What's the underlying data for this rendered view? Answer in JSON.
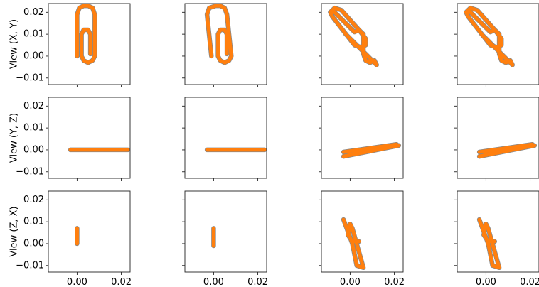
{
  "chart_data": {
    "type": "line",
    "title": "",
    "layout": {
      "rows": 3,
      "cols": 4
    },
    "row_labels": [
      "View (X, Y)",
      "View (Y, Z)",
      "View (Z, X)"
    ],
    "xlim": [
      -0.013,
      0.024
    ],
    "ylim": [
      -0.013,
      0.024
    ],
    "xticks": [
      0.0,
      0.02
    ],
    "xtick_labels": [
      "0.00",
      "0.02"
    ],
    "yticks": [
      -0.01,
      0.0,
      0.01,
      0.02
    ],
    "ytick_labels": [
      "−0.01",
      "0.00",
      "0.01",
      "0.02"
    ],
    "grid": false,
    "colors": {
      "primary": "#ff7f0e",
      "underlay": "#888888",
      "frame": "#222222"
    },
    "panels": [
      {
        "row": 0,
        "col": 0,
        "points": [
          [
            0.0,
            0.0
          ],
          [
            0.0,
            0.019
          ],
          [
            0.001,
            0.022
          ],
          [
            0.003,
            0.023
          ],
          [
            0.005,
            0.023
          ],
          [
            0.007,
            0.022
          ],
          [
            0.008,
            0.019
          ],
          [
            0.008,
            0.0
          ],
          [
            0.007,
            -0.002
          ],
          [
            0.005,
            -0.003
          ],
          [
            0.003,
            -0.002
          ],
          [
            0.002,
            0.0
          ],
          [
            0.002,
            0.01
          ],
          [
            0.003,
            0.012
          ],
          [
            0.005,
            0.012
          ],
          [
            0.006,
            0.01
          ],
          [
            0.006,
            0.001
          ]
        ]
      },
      {
        "row": 0,
        "col": 1,
        "points": [
          [
            -0.001,
            0.0
          ],
          [
            -0.003,
            0.019
          ],
          [
            -0.002,
            0.022
          ],
          [
            0.001,
            0.023
          ],
          [
            0.003,
            0.023
          ],
          [
            0.005,
            0.022
          ],
          [
            0.006,
            0.019
          ],
          [
            0.008,
            0.0
          ],
          [
            0.007,
            -0.002
          ],
          [
            0.005,
            -0.003
          ],
          [
            0.003,
            -0.002
          ],
          [
            0.002,
            0.0
          ],
          [
            0.002,
            0.01
          ],
          [
            0.003,
            0.012
          ],
          [
            0.005,
            0.012
          ],
          [
            0.006,
            0.01
          ],
          [
            0.006,
            0.001
          ]
        ]
      },
      {
        "row": 0,
        "col": 2,
        "points": [
          [
            -0.008,
            0.021
          ],
          [
            -0.007,
            0.022
          ],
          [
            -0.004,
            0.021
          ],
          [
            0.004,
            0.012
          ],
          [
            0.007,
            0.008
          ],
          [
            0.007,
            0.005
          ],
          [
            0.005,
            0.004
          ],
          [
            0.002,
            0.005
          ],
          [
            -0.008,
            0.018
          ],
          [
            -0.009,
            0.02
          ],
          [
            -0.008,
            0.021
          ],
          [
            0.002,
            0.011
          ],
          [
            0.004,
            0.012
          ],
          [
            0.006,
            0.01
          ],
          [
            0.006,
            0.001
          ],
          [
            0.007,
            -0.002
          ],
          [
            0.009,
            -0.003
          ],
          [
            0.011,
            -0.002
          ],
          [
            0.012,
            -0.004
          ],
          [
            -0.002,
            0.01
          ]
        ]
      },
      {
        "row": 0,
        "col": 3,
        "points": [
          [
            -0.008,
            0.021
          ],
          [
            -0.007,
            0.022
          ],
          [
            -0.004,
            0.021
          ],
          [
            0.004,
            0.012
          ],
          [
            0.007,
            0.008
          ],
          [
            0.007,
            0.005
          ],
          [
            0.005,
            0.004
          ],
          [
            0.002,
            0.005
          ],
          [
            -0.008,
            0.018
          ],
          [
            -0.009,
            0.02
          ],
          [
            -0.008,
            0.021
          ],
          [
            0.002,
            0.011
          ],
          [
            0.004,
            0.012
          ],
          [
            0.006,
            0.01
          ],
          [
            0.006,
            0.001
          ],
          [
            0.007,
            -0.002
          ],
          [
            0.009,
            -0.003
          ],
          [
            0.011,
            -0.002
          ],
          [
            0.012,
            -0.004
          ],
          [
            -0.002,
            0.01
          ]
        ]
      },
      {
        "row": 1,
        "col": 0,
        "points": [
          [
            -0.003,
            0.0
          ],
          [
            0.023,
            0.0
          ]
        ]
      },
      {
        "row": 1,
        "col": 1,
        "points": [
          [
            -0.003,
            0.0
          ],
          [
            0.023,
            0.0
          ]
        ]
      },
      {
        "row": 1,
        "col": 2,
        "points": [
          [
            -0.003,
            -0.001
          ],
          [
            0.021,
            0.0025
          ],
          [
            -0.003,
            -0.003
          ],
          [
            0.022,
            0.002
          ]
        ]
      },
      {
        "row": 1,
        "col": 3,
        "points": [
          [
            -0.003,
            -0.001
          ],
          [
            0.021,
            0.0025
          ],
          [
            -0.003,
            -0.003
          ],
          [
            0.022,
            0.002
          ]
        ]
      },
      {
        "row": 2,
        "col": 0,
        "points": [
          [
            0.0,
            0.007
          ],
          [
            0.0,
            0.0
          ]
        ]
      },
      {
        "row": 2,
        "col": 1,
        "points": [
          [
            0.0,
            0.007
          ],
          [
            0.0,
            -0.001
          ]
        ]
      },
      {
        "row": 2,
        "col": 2,
        "points": [
          [
            -0.003,
            0.011
          ],
          [
            0.001,
            0.0
          ],
          [
            0.003,
            -0.01
          ],
          [
            0.006,
            -0.011
          ],
          [
            0.001,
            0.007
          ],
          [
            0.0,
            0.009
          ],
          [
            -0.001,
            0.004
          ],
          [
            0.001,
            0.001
          ],
          [
            0.004,
            0.001
          ]
        ]
      },
      {
        "row": 2,
        "col": 3,
        "points": [
          [
            -0.003,
            0.011
          ],
          [
            0.001,
            0.0
          ],
          [
            0.003,
            -0.01
          ],
          [
            0.006,
            -0.011
          ],
          [
            0.001,
            0.007
          ],
          [
            0.0,
            0.009
          ],
          [
            -0.001,
            0.004
          ],
          [
            0.001,
            0.001
          ],
          [
            0.004,
            0.001
          ]
        ]
      }
    ]
  }
}
